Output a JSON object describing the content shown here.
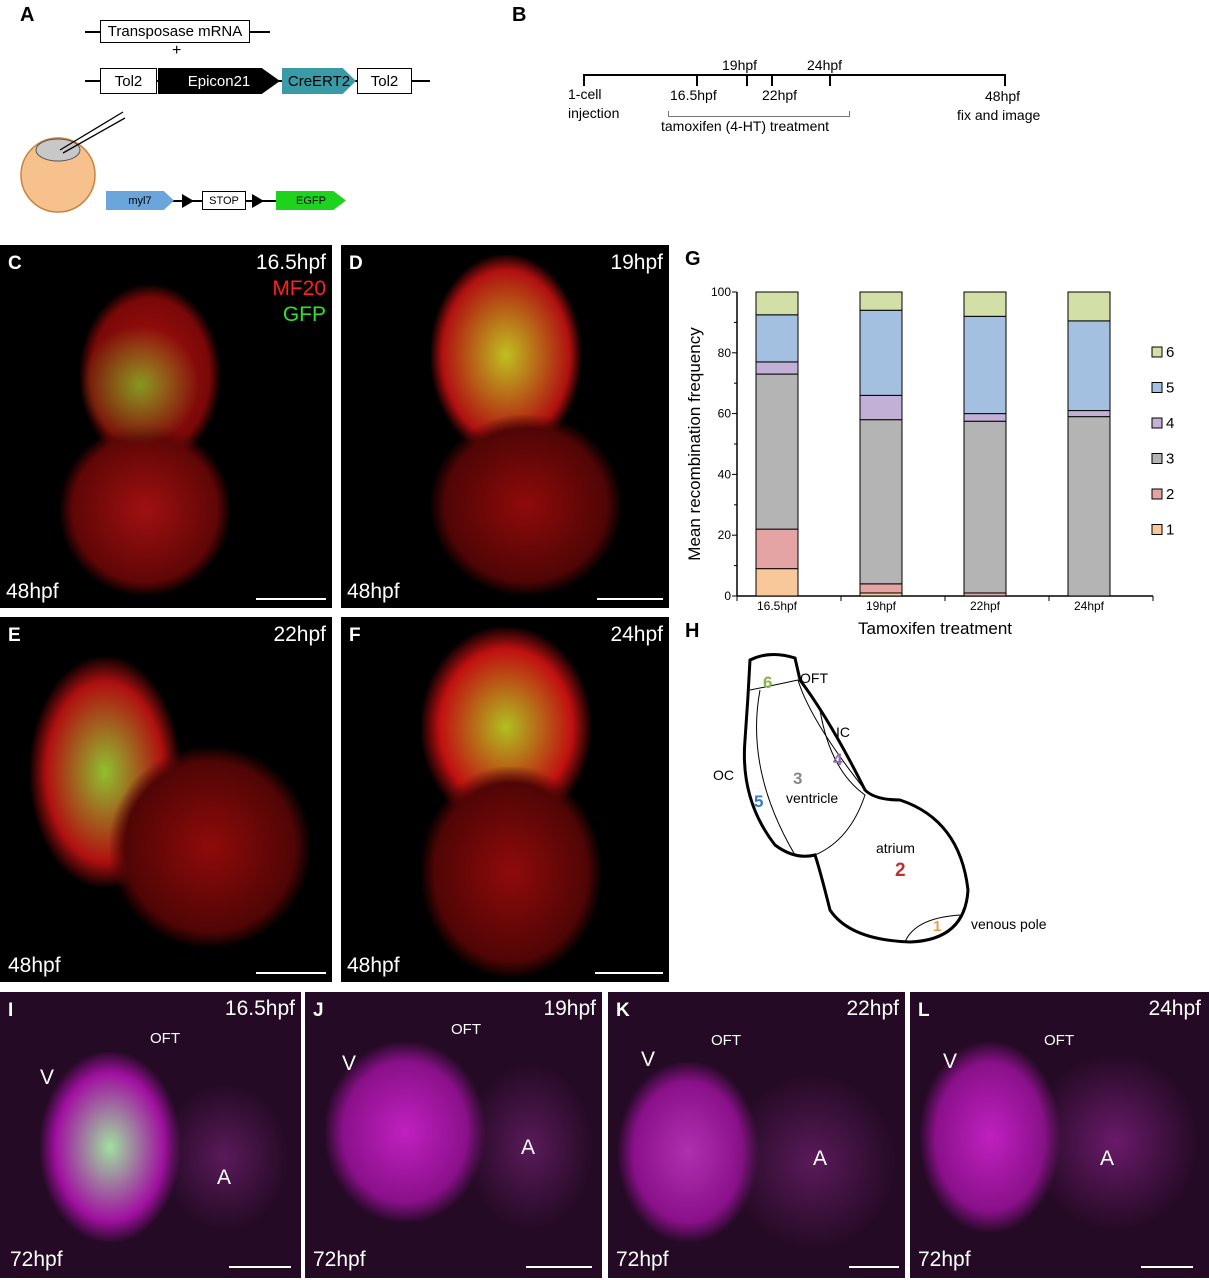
{
  "panelA": {
    "label": "A",
    "transposase": "Transposase mRNA",
    "plus": "+",
    "tol2_left": "Tol2",
    "epicon": "Epicon21",
    "creert2": "CreERT2",
    "tol2_right": "Tol2",
    "myl7": "myl7",
    "stop": "STOP",
    "egfp": "EGFP"
  },
  "panelB": {
    "label": "B",
    "t1": "1-cell",
    "t1b": "injection",
    "t2": "16.5hpf",
    "t3": "19hpf",
    "t4": "22hpf",
    "t5": "24hpf",
    "t6": "48hpf",
    "t6b": "fix and image",
    "treatment": "tamoxifen (4-HT) treatment"
  },
  "panelsCF": [
    {
      "label": "C",
      "time": "16.5hpf",
      "stage": "48hpf",
      "mf20": "MF20",
      "gfp": "GFP"
    },
    {
      "label": "D",
      "time": "19hpf",
      "stage": "48hpf"
    },
    {
      "label": "E",
      "time": "22hpf",
      "stage": "48hpf"
    },
    {
      "label": "F",
      "time": "24hpf",
      "stage": "48hpf"
    }
  ],
  "panelsIL": [
    {
      "label": "I",
      "time": "16.5hpf",
      "stage": "72hpf",
      "oft": "OFT",
      "v": "V",
      "a": "A"
    },
    {
      "label": "J",
      "time": "19hpf",
      "stage": "72hpf",
      "oft": "OFT",
      "v": "V",
      "a": "A"
    },
    {
      "label": "K",
      "time": "22hpf",
      "stage": "72hpf",
      "oft": "OFT",
      "v": "V",
      "a": "A"
    },
    {
      "label": "L",
      "time": "24hpf",
      "stage": "72hpf",
      "oft": "OFT",
      "v": "V",
      "a": "A"
    }
  ],
  "panelG": {
    "label": "G"
  },
  "panelH": {
    "label": "H",
    "oft": "OFT",
    "ic": "IC",
    "oc": "OC",
    "ventricle": "ventricle",
    "atrium": "atrium",
    "venous": "venous pole",
    "n1": "1",
    "n2": "2",
    "n3": "3",
    "n4": "4",
    "n5": "5",
    "n6": "6"
  },
  "chart_data": {
    "type": "bar",
    "stacked": true,
    "categories": [
      "16.5hpf",
      "19hpf",
      "22hpf",
      "24hpf"
    ],
    "xlabel": "Tamoxifen treatment",
    "ylabel": "Mean recombination frequency",
    "ylim": [
      0,
      100
    ],
    "yticks": [
      "0",
      "20",
      "40",
      "60",
      "80",
      "100"
    ],
    "legend_position": "right",
    "series": [
      {
        "name": "1",
        "color": "#f9c89a",
        "values": [
          9,
          1,
          0,
          0
        ]
      },
      {
        "name": "2",
        "color": "#e4a4a4",
        "values": [
          13,
          3,
          1,
          0
        ]
      },
      {
        "name": "3",
        "color": "#b4b4b4",
        "values": [
          51,
          54,
          56.5,
          59
        ]
      },
      {
        "name": "4",
        "color": "#c2b0d6",
        "values": [
          4,
          8,
          2.5,
          2
        ]
      },
      {
        "name": "5",
        "color": "#a4c0e0",
        "values": [
          15.5,
          28,
          32,
          29.5
        ]
      },
      {
        "name": "6",
        "color": "#d2e0a8",
        "values": [
          7.5,
          6,
          8,
          9.5
        ]
      }
    ]
  }
}
